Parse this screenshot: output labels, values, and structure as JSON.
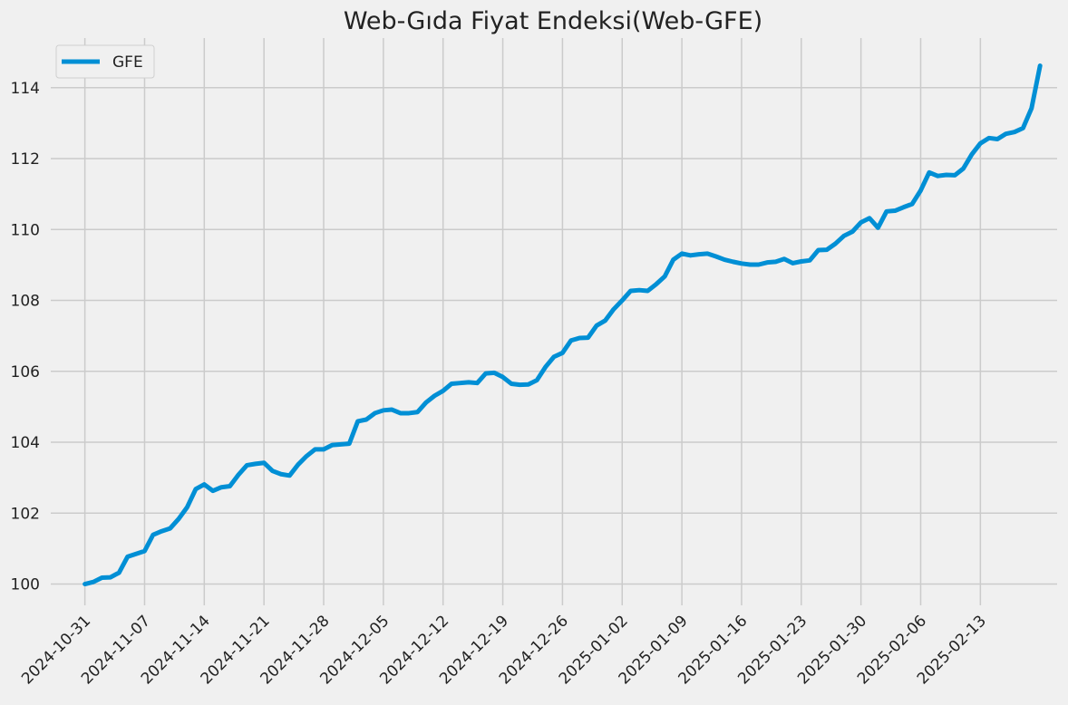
{
  "chart_data": {
    "type": "line",
    "title": "Web-Gıda Fiyat Endeksi(Web-GFE)",
    "xlabel": "",
    "ylabel": "",
    "x_start": "2024-10-31",
    "x_end": "2025-02-18",
    "xlim": [
      "2024-10-27",
      "2025-02-22"
    ],
    "ylim": [
      99.4,
      115.4
    ],
    "grid": true,
    "legend": {
      "position": "top-left",
      "entries": [
        "GFE"
      ]
    },
    "x_ticks": [
      "2024-10-31",
      "2024-11-07",
      "2024-11-14",
      "2024-11-21",
      "2024-11-28",
      "2024-12-05",
      "2024-12-12",
      "2024-12-19",
      "2024-12-26",
      "2025-01-02",
      "2025-01-09",
      "2025-01-16",
      "2025-01-23",
      "2025-01-30",
      "2025-02-06",
      "2025-02-13"
    ],
    "y_ticks": [
      100,
      102,
      104,
      106,
      108,
      110,
      112,
      114
    ],
    "series": [
      {
        "name": "GFE",
        "color": "#008fd5",
        "values": [
          100.0,
          100.06,
          100.18,
          100.19,
          100.32,
          100.77,
          100.85,
          100.93,
          101.39,
          101.49,
          101.57,
          101.84,
          102.17,
          102.68,
          102.81,
          102.63,
          102.73,
          102.76,
          103.08,
          103.35,
          103.39,
          103.42,
          103.19,
          103.1,
          103.06,
          103.37,
          103.61,
          103.8,
          103.8,
          103.92,
          103.94,
          103.96,
          104.59,
          104.64,
          104.82,
          104.9,
          104.92,
          104.82,
          104.82,
          104.85,
          105.12,
          105.31,
          105.45,
          105.65,
          105.67,
          105.69,
          105.67,
          105.94,
          105.96,
          105.84,
          105.65,
          105.62,
          105.63,
          105.75,
          106.12,
          106.41,
          106.52,
          106.87,
          106.94,
          106.95,
          107.29,
          107.43,
          107.75,
          108.0,
          108.27,
          108.29,
          108.27,
          108.46,
          108.68,
          109.15,
          109.32,
          109.27,
          109.3,
          109.32,
          109.24,
          109.15,
          109.09,
          109.04,
          109.01,
          109.01,
          109.07,
          109.09,
          109.17,
          109.05,
          109.1,
          109.13,
          109.42,
          109.43,
          109.6,
          109.82,
          109.94,
          110.2,
          110.32,
          110.05,
          110.51,
          110.53,
          110.63,
          110.72,
          111.1,
          111.61,
          111.51,
          111.54,
          111.53,
          111.72,
          112.12,
          112.43,
          112.58,
          112.55,
          112.7,
          112.75,
          112.86,
          113.42,
          114.62
        ]
      }
    ]
  }
}
